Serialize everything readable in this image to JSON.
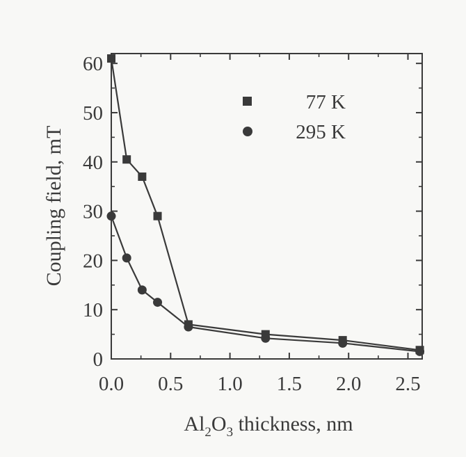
{
  "chart_data": {
    "type": "line",
    "xlabel": {
      "pre": "Al",
      "sub1": "2",
      "mid": "O",
      "sub2": "3",
      "post": " thickness, nm"
    },
    "ylabel": "Coupling  field, mT",
    "xlim": [
      0.0,
      2.62
    ],
    "ylim": [
      0,
      62
    ],
    "xticks": [
      0.0,
      0.5,
      1.0,
      1.5,
      2.0,
      2.5
    ],
    "xtick_labels": [
      "0.0",
      "0.5",
      "1.0",
      "1.5",
      "2.0",
      "2.5"
    ],
    "yticks": [
      0,
      10,
      20,
      30,
      40,
      50,
      60
    ],
    "ytick_labels": [
      "0",
      "10",
      "20",
      "30",
      "40",
      "50",
      "60"
    ],
    "grid": false,
    "legend_position": "top-right",
    "series": [
      {
        "name": "77 K",
        "marker": "square",
        "x": [
          0.0,
          0.13,
          0.26,
          0.39,
          0.65,
          1.3,
          1.95,
          2.6
        ],
        "y": [
          61,
          40.5,
          37,
          29,
          7,
          5,
          3.8,
          1.8
        ]
      },
      {
        "name": "295 K",
        "marker": "circle",
        "x": [
          0.0,
          0.13,
          0.26,
          0.39,
          0.65,
          1.3,
          1.95,
          2.6
        ],
        "y": [
          29,
          20.5,
          14,
          11.5,
          6.5,
          4.2,
          3.2,
          1.5
        ]
      }
    ],
    "colors": {
      "line": "#3a3a3a",
      "marker": "#3a3a3a",
      "text": "#3a3a3a",
      "background": "#f8f8f6"
    }
  }
}
